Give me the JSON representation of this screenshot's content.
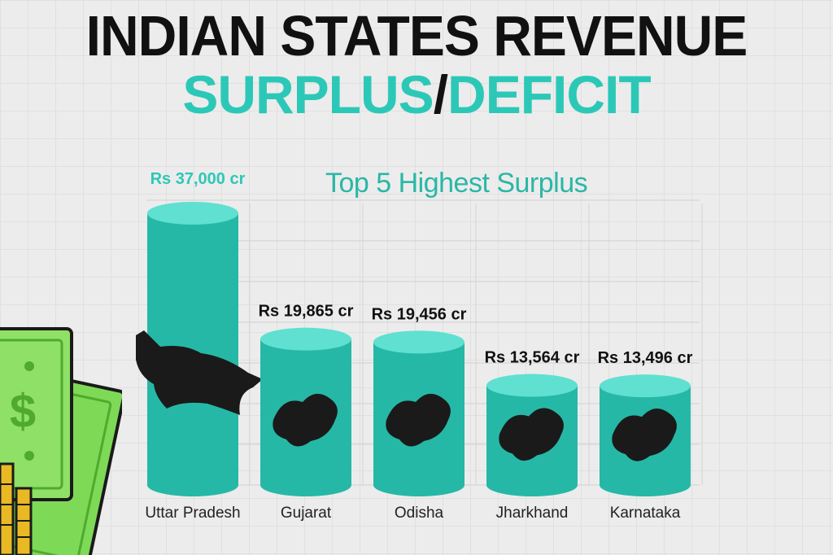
{
  "header": {
    "title_line1": "INDIAN STATES REVENUE",
    "title_part1": "SURPLUS",
    "title_sep": "/",
    "title_part2": "DEFICIT",
    "subtitle": "Top 5 Highest Surplus"
  },
  "colors": {
    "accent": "#2cc8b7",
    "bar_body": "#26b8a6",
    "bar_top": "#5fe0d0",
    "map": "#1a1a1a",
    "money_green": "#7ed957"
  },
  "icons": [
    "money-bills-icon",
    "coins-icon",
    "state-map-icon"
  ],
  "chart_data": {
    "type": "bar",
    "title": "Top 5 Highest Surplus",
    "categories": [
      "Uttar Pradesh",
      "Gujarat",
      "Odisha",
      "Jharkhand",
      "Karnataka"
    ],
    "values": [
      37000,
      19865,
      19456,
      13564,
      13496
    ],
    "value_labels": [
      "Rs 37,000 cr",
      "Rs 19,865 cr",
      "Rs 19,456 cr",
      "Rs 13,564 cr",
      "Rs 13,496 cr"
    ],
    "ylim": [
      0,
      40000
    ],
    "grid": true,
    "legend": "none"
  }
}
